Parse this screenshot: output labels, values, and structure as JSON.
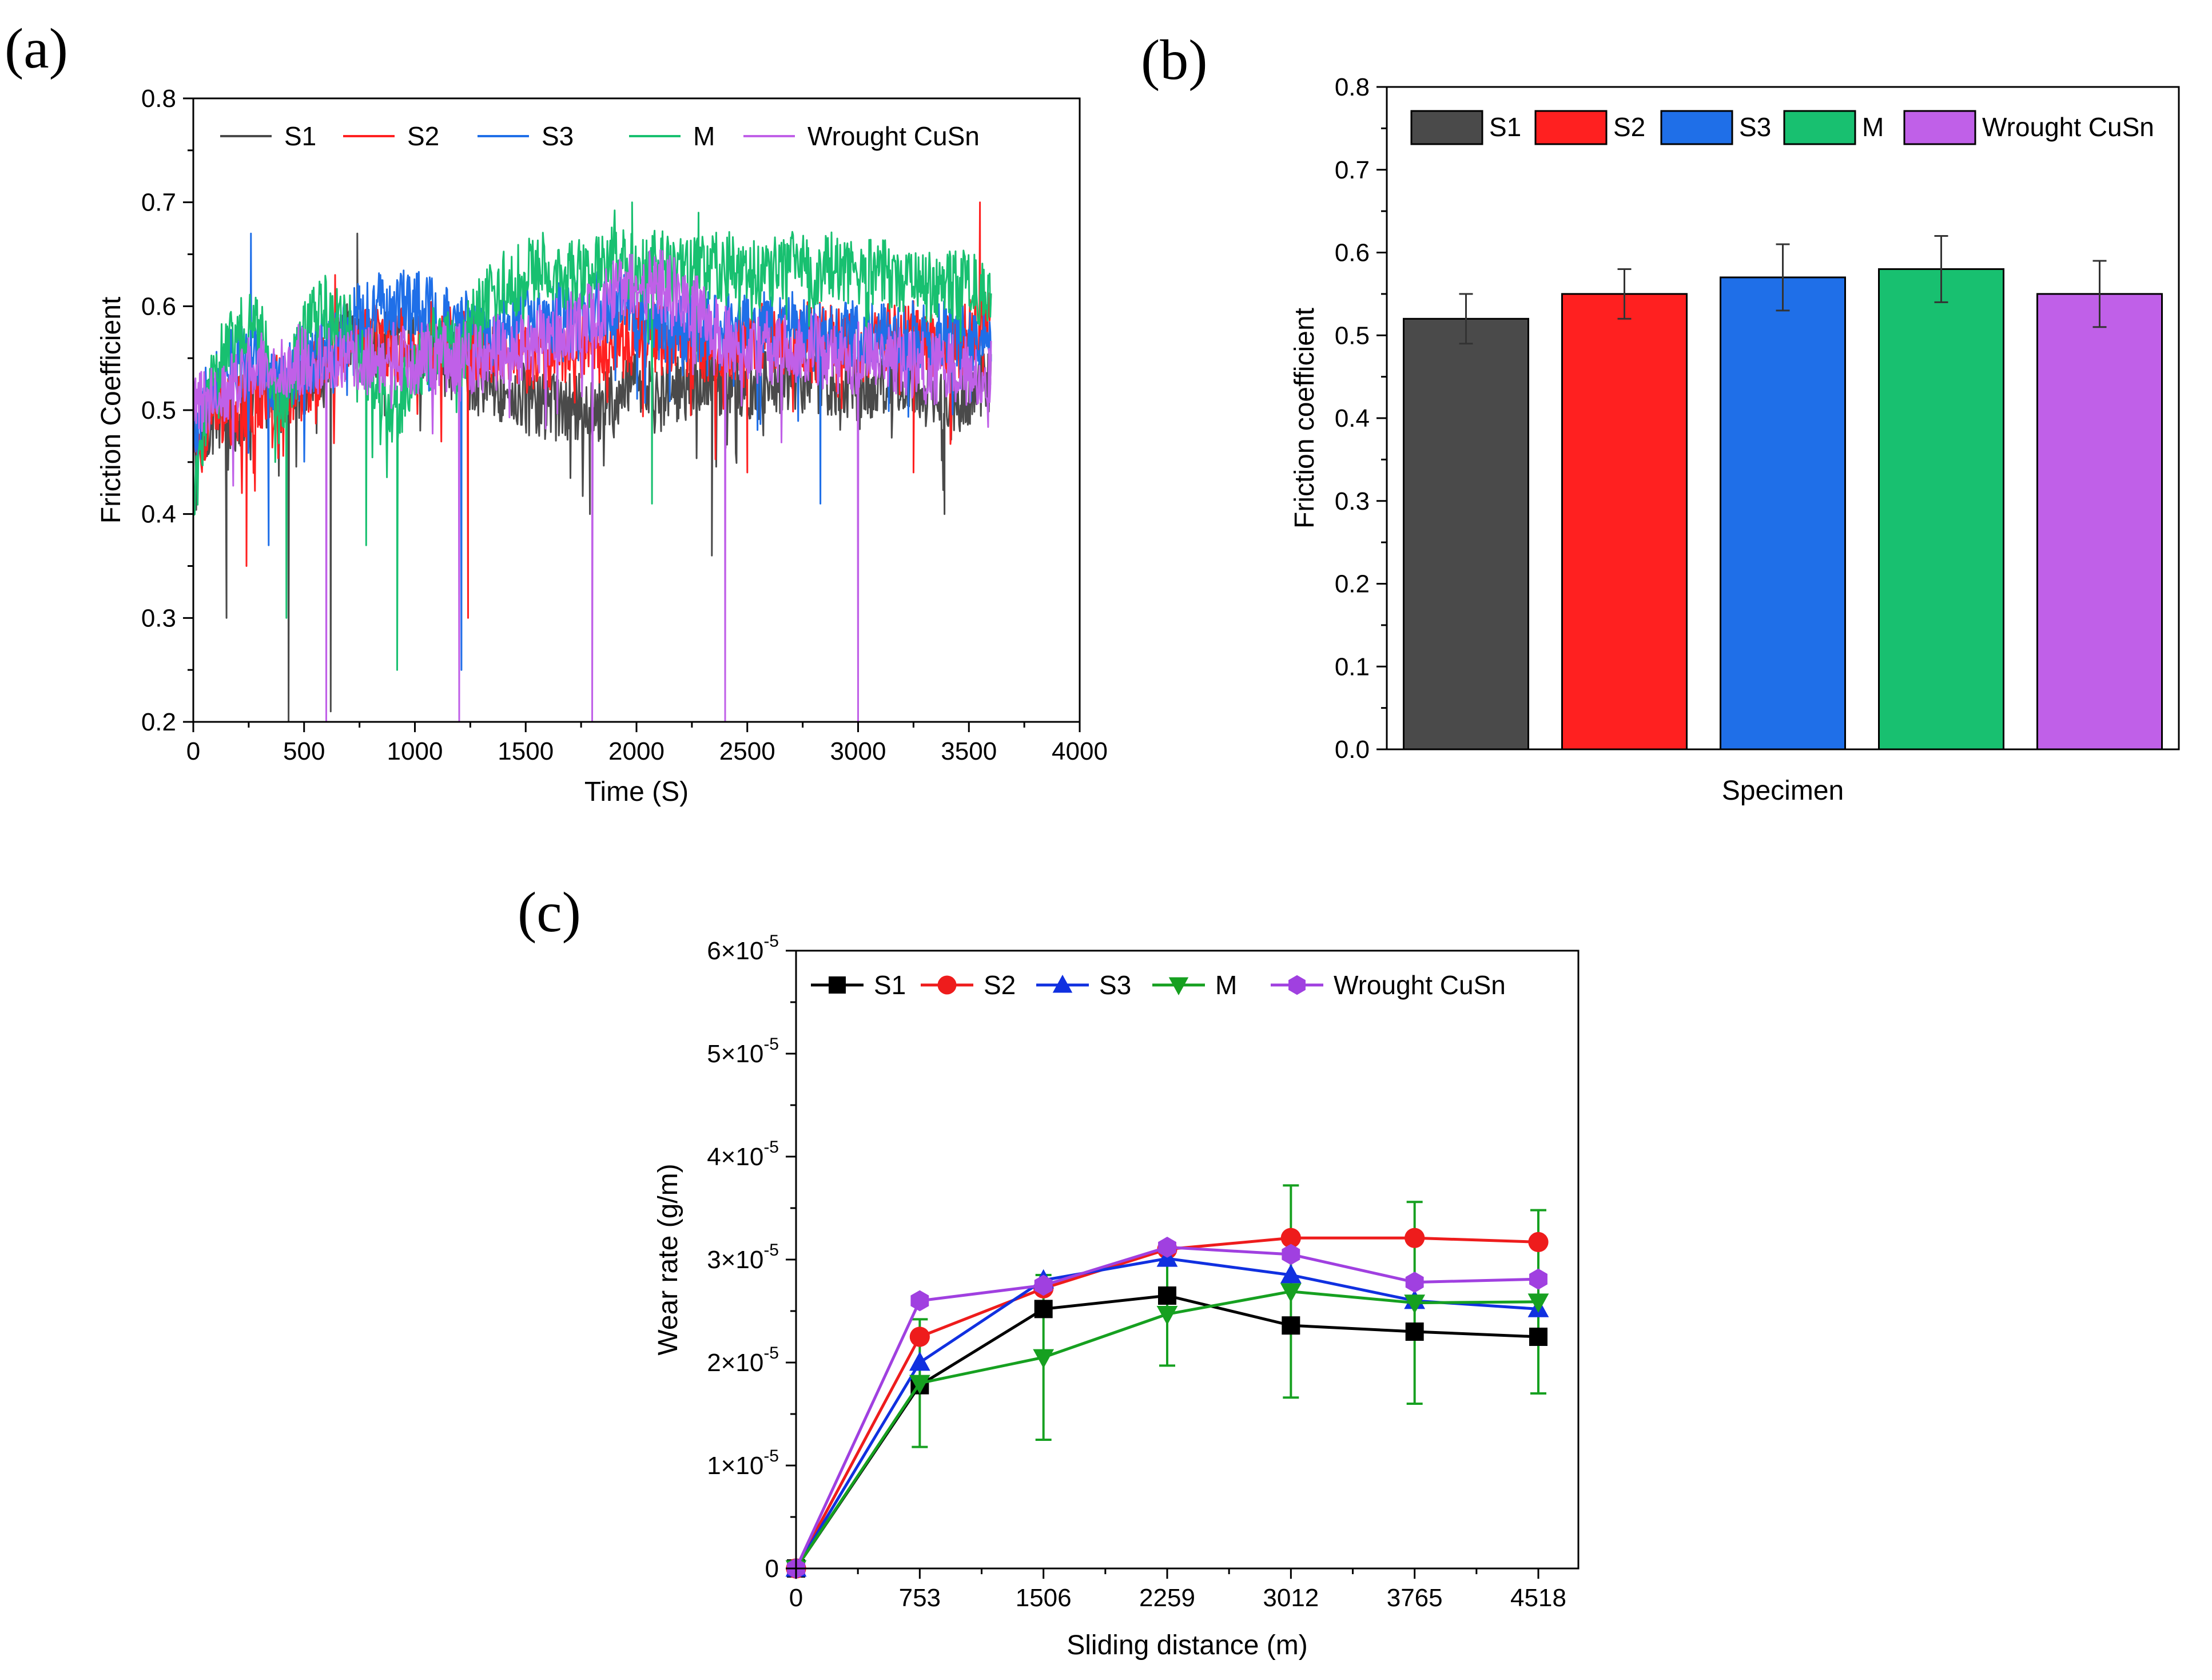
{
  "figure": {
    "panel_labels": [
      "(a)",
      "(b)",
      "(c)"
    ]
  },
  "chart_data": [
    {
      "type": "line",
      "panel": "(a)",
      "title": "",
      "xlabel": "Time (S)",
      "ylabel": "Friction Coefficient",
      "xlim": [
        0,
        4000
      ],
      "ylim": [
        0.2,
        0.8
      ],
      "x_ticks": [
        0,
        500,
        1000,
        1500,
        2000,
        2500,
        3000,
        3500,
        4000
      ],
      "y_ticks": [
        0.2,
        0.3,
        0.4,
        0.5,
        0.6,
        0.7,
        0.8
      ],
      "x_tick_labels": [
        "0",
        "500",
        "1000",
        "1500",
        "2000",
        "2500",
        "3000",
        "3500",
        "4000"
      ],
      "y_tick_labels": [
        "0.2",
        "0.3",
        "0.4",
        "0.5",
        "0.6",
        "0.7",
        "0.8"
      ],
      "legend_position": "top",
      "series": [
        {
          "name": "S1",
          "color": "#4a4a4a",
          "x": [
            0,
            100,
            200,
            300,
            400,
            500,
            600,
            700,
            800,
            900,
            1000,
            1100,
            1200,
            1300,
            1400,
            1500,
            1600,
            1700,
            1800,
            1900,
            2000,
            2100,
            2200,
            2300,
            2400,
            2500,
            2600,
            2700,
            2800,
            2900,
            3000,
            3100,
            3200,
            3300,
            3400,
            3500,
            3600
          ],
          "values": [
            0.46,
            0.5,
            0.49,
            0.52,
            0.51,
            0.53,
            0.55,
            0.57,
            0.56,
            0.57,
            0.56,
            0.55,
            0.54,
            0.53,
            0.52,
            0.51,
            0.5,
            0.5,
            0.5,
            0.51,
            0.52,
            0.51,
            0.52,
            0.53,
            0.53,
            0.52,
            0.53,
            0.53,
            0.53,
            0.53,
            0.52,
            0.53,
            0.53,
            0.52,
            0.5,
            0.52,
            0.53
          ],
          "spikes": [
            [
              150,
              0.3
            ],
            [
              430,
              0.2
            ],
            [
              620,
              0.21
            ],
            [
              740,
              0.67
            ],
            [
              1790,
              0.4
            ],
            [
              2340,
              0.36
            ],
            [
              3390,
              0.4
            ]
          ]
        },
        {
          "name": "S2",
          "color": "#ff2020",
          "x": [
            0,
            100,
            200,
            300,
            400,
            500,
            600,
            700,
            800,
            900,
            1000,
            1100,
            1200,
            1300,
            1400,
            1500,
            1600,
            1700,
            1800,
            1900,
            2000,
            2100,
            2200,
            2300,
            2400,
            2500,
            2600,
            2700,
            2800,
            2900,
            3000,
            3100,
            3200,
            3300,
            3400,
            3500,
            3600
          ],
          "values": [
            0.45,
            0.5,
            0.5,
            0.51,
            0.52,
            0.52,
            0.55,
            0.56,
            0.57,
            0.56,
            0.57,
            0.57,
            0.56,
            0.56,
            0.55,
            0.55,
            0.55,
            0.56,
            0.56,
            0.56,
            0.57,
            0.57,
            0.56,
            0.56,
            0.56,
            0.57,
            0.57,
            0.57,
            0.57,
            0.57,
            0.56,
            0.57,
            0.57,
            0.57,
            0.56,
            0.57,
            0.6
          ],
          "spikes": [
            [
              240,
              0.35
            ],
            [
              640,
              0.63
            ],
            [
              1240,
              0.3
            ],
            [
              2500,
              0.44
            ],
            [
              3250,
              0.44
            ],
            [
              3550,
              0.7
            ]
          ]
        },
        {
          "name": "S3",
          "color": "#1f6fe8",
          "x": [
            0,
            100,
            200,
            300,
            400,
            500,
            600,
            700,
            800,
            900,
            1000,
            1100,
            1200,
            1300,
            1400,
            1500,
            1600,
            1700,
            1800,
            1900,
            2000,
            2100,
            2200,
            2300,
            2400,
            2500,
            2600,
            2700,
            2800,
            2900,
            3000,
            3100,
            3200,
            3300,
            3400,
            3500,
            3600
          ],
          "values": [
            0.48,
            0.53,
            0.55,
            0.55,
            0.52,
            0.55,
            0.56,
            0.58,
            0.6,
            0.6,
            0.6,
            0.59,
            0.58,
            0.58,
            0.58,
            0.59,
            0.59,
            0.59,
            0.6,
            0.6,
            0.59,
            0.58,
            0.58,
            0.58,
            0.58,
            0.58,
            0.58,
            0.58,
            0.57,
            0.57,
            0.57,
            0.57,
            0.57,
            0.57,
            0.57,
            0.57,
            0.57
          ],
          "spikes": [
            [
              260,
              0.67
            ],
            [
              340,
              0.37
            ],
            [
              1210,
              0.25
            ],
            [
              2830,
              0.41
            ],
            [
              3000,
              0.42
            ]
          ]
        },
        {
          "name": "M",
          "color": "#18c070",
          "x": [
            0,
            100,
            200,
            300,
            400,
            500,
            600,
            700,
            800,
            900,
            1000,
            1100,
            1200,
            1300,
            1400,
            1500,
            1600,
            1700,
            1800,
            1900,
            2000,
            2100,
            2200,
            2300,
            2400,
            2500,
            2600,
            2700,
            2800,
            2900,
            3000,
            3100,
            3200,
            3300,
            3400,
            3500,
            3600
          ],
          "values": [
            0.42,
            0.55,
            0.58,
            0.58,
            0.5,
            0.57,
            0.6,
            0.58,
            0.54,
            0.5,
            0.53,
            0.57,
            0.55,
            0.6,
            0.62,
            0.63,
            0.64,
            0.63,
            0.63,
            0.66,
            0.63,
            0.64,
            0.63,
            0.64,
            0.64,
            0.63,
            0.63,
            0.64,
            0.63,
            0.64,
            0.63,
            0.63,
            0.63,
            0.62,
            0.62,
            0.62,
            0.61
          ],
          "spikes": [
            [
              420,
              0.3
            ],
            [
              780,
              0.37
            ],
            [
              920,
              0.25
            ],
            [
              1980,
              0.7
            ],
            [
              2070,
              0.41
            ],
            [
              2280,
              0.69
            ]
          ]
        },
        {
          "name": "Wrought CuSn",
          "color": "#c060e8",
          "x": [
            0,
            100,
            200,
            300,
            400,
            500,
            600,
            700,
            800,
            900,
            1000,
            1100,
            1200,
            1300,
            1400,
            1500,
            1600,
            1700,
            1800,
            1900,
            2000,
            2100,
            2200,
            2300,
            2400,
            2500,
            2600,
            2700,
            2800,
            2900,
            3000,
            3100,
            3200,
            3300,
            3400,
            3500,
            3600
          ],
          "values": [
            0.5,
            0.52,
            0.53,
            0.54,
            0.54,
            0.55,
            0.55,
            0.55,
            0.55,
            0.55,
            0.55,
            0.55,
            0.55,
            0.55,
            0.56,
            0.56,
            0.57,
            0.58,
            0.59,
            0.61,
            0.62,
            0.62,
            0.61,
            0.59,
            0.57,
            0.56,
            0.56,
            0.56,
            0.56,
            0.55,
            0.55,
            0.55,
            0.55,
            0.54,
            0.54,
            0.54,
            0.54
          ],
          "spikes": [
            [
              600,
              0.2
            ],
            [
              1200,
              0.2
            ],
            [
              1800,
              0.2
            ],
            [
              2400,
              0.2
            ],
            [
              3000,
              0.2
            ]
          ]
        }
      ]
    },
    {
      "type": "bar",
      "panel": "(b)",
      "title": "",
      "xlabel": "Specimen",
      "ylabel": "Friction coefficient",
      "ylim": [
        0,
        0.8
      ],
      "y_ticks": [
        0,
        0.1,
        0.2,
        0.3,
        0.4,
        0.5,
        0.6,
        0.7,
        0.8
      ],
      "y_tick_labels": [
        "0.0",
        "0.1",
        "0.2",
        "0.3",
        "0.4",
        "0.5",
        "0.6",
        "0.7",
        "0.8"
      ],
      "legend_position": "top",
      "categories": [
        "S1",
        "S2",
        "S3",
        "M",
        "Wrought CuSn"
      ],
      "values": [
        0.52,
        0.55,
        0.57,
        0.58,
        0.55
      ],
      "errors": [
        0.03,
        0.03,
        0.04,
        0.04,
        0.04
      ],
      "colors": [
        "#4a4a4a",
        "#ff2020",
        "#1f6fe8",
        "#18c070",
        "#c060e8"
      ]
    },
    {
      "type": "line",
      "panel": "(c)",
      "title": "",
      "xlabel": "Sliding distance (m)",
      "ylabel": "Wear rate (g/m)",
      "x": [
        0,
        753,
        1506,
        2259,
        3012,
        3765,
        4518
      ],
      "x_tick_labels": [
        "0",
        "753",
        "1506",
        "2259",
        "3012",
        "3765",
        "4518"
      ],
      "xlim": [
        0,
        4518
      ],
      "ylim": [
        0,
        6e-05
      ],
      "y_ticks": [
        0,
        1e-05,
        2e-05,
        3e-05,
        4e-05,
        5e-05,
        6e-05
      ],
      "y_tick_mantissa": [
        "0",
        "1",
        "2",
        "3",
        "4",
        "5",
        "6"
      ],
      "y_tick_base": "×10",
      "y_tick_exp": "-5",
      "legend_position": "top",
      "series": [
        {
          "name": "S1",
          "color": "#000000",
          "marker": "square",
          "values": [
            0,
            1.78e-05,
            2.52e-05,
            2.65e-05,
            2.36e-05,
            2.3e-05,
            2.25e-05
          ]
        },
        {
          "name": "S2",
          "color": "#ee1c1c",
          "marker": "circle",
          "values": [
            0,
            2.25e-05,
            2.72e-05,
            3.1e-05,
            3.21e-05,
            3.21e-05,
            3.17e-05
          ]
        },
        {
          "name": "S3",
          "color": "#1030e0",
          "marker": "triangle-up",
          "values": [
            0,
            2e-05,
            2.8e-05,
            3.01e-05,
            2.85e-05,
            2.6e-05,
            2.52e-05
          ]
        },
        {
          "name": "M",
          "color": "#16a020",
          "marker": "triangle-down",
          "values": [
            0,
            1.8e-05,
            2.05e-05,
            2.47e-05,
            2.69e-05,
            2.58e-05,
            2.59e-05
          ],
          "errors": [
            0,
            6.2e-06,
            8e-06,
            5e-06,
            1.03e-05,
            9.8e-06,
            8.9e-06
          ]
        },
        {
          "name": "Wrought CuSn",
          "color": "#a040e0",
          "marker": "hexagon",
          "values": [
            0,
            2.6e-05,
            2.75e-05,
            3.12e-05,
            3.05e-05,
            2.78e-05,
            2.81e-05
          ]
        }
      ]
    }
  ]
}
